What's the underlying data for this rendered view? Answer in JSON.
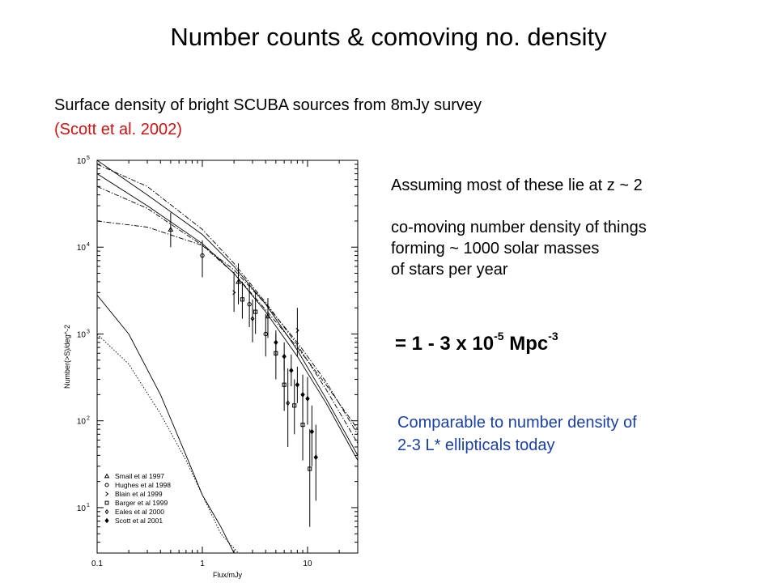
{
  "header": {
    "title": "Number counts & comoving no. density",
    "subtitle_line1": "Surface density of bright SCUBA sources from 8mJy survey",
    "subtitle_line2": "(Scott et al. 2002)"
  },
  "notes": {
    "line1": "Assuming most of these lie at z ~ 2",
    "line2": "co-moving number density of things",
    "line3": "forming ~ 1000 solar masses",
    "line4": "of stars per year"
  },
  "result": {
    "prefix": "= 1 - 3 x 10",
    "exp1": "-5",
    "unit": " Mpc",
    "exp2": "-3"
  },
  "comparison": {
    "line1": "Comparable to number density of",
    "line2": "2-3 L* ellipticals today"
  },
  "colors": {
    "title_text": "#000000",
    "citation": "#cc1111",
    "comparison": "#1a3fa8"
  },
  "chart_data": {
    "type": "scatter",
    "xlabel": "Flux/mJy",
    "ylabel": "Number(>S)/deg^-2",
    "x_scale": "log",
    "y_scale": "log",
    "xlim": [
      0.1,
      30
    ],
    "ylim": [
      3,
      100000
    ],
    "x_ticks": [
      0.1,
      1,
      10
    ],
    "x_tick_labels": [
      "0.1",
      "1",
      "10"
    ],
    "y_ticks": [
      10,
      100,
      1000,
      10000,
      100000
    ],
    "y_tick_label_bases": [
      "10",
      "10",
      "10",
      "10",
      "10"
    ],
    "y_tick_label_exps": [
      "1",
      "2",
      "3",
      "4",
      "5"
    ],
    "legend": {
      "position": "bottom-left",
      "entries": [
        "Smail et al 1997",
        "Hughes et al 1998",
        "Blain et al 1999",
        "Barger et al 1999",
        "Eales et al 2000",
        "Scott et al 2001"
      ],
      "symbols": [
        "triangle",
        "circle",
        "cross",
        "square",
        "diamond",
        "filled-diamond"
      ]
    },
    "series": [
      {
        "name": "Smail et al 1997",
        "symbol": "triangle",
        "points": [
          {
            "x": 0.5,
            "y": 16000,
            "lo": 10000,
            "hi": 25000
          },
          {
            "x": 2.2,
            "y": 4000,
            "lo": 2200,
            "hi": 6500
          },
          {
            "x": 4.2,
            "y": 1600,
            "lo": 900,
            "hi": 2600
          }
        ]
      },
      {
        "name": "Hughes et al 1998",
        "symbol": "circle",
        "points": [
          {
            "x": 1.0,
            "y": 8000,
            "lo": 4500,
            "hi": 12000
          },
          {
            "x": 2.8,
            "y": 2200,
            "lo": 1200,
            "hi": 3800
          },
          {
            "x": 4.0,
            "y": 1000,
            "lo": 550,
            "hi": 1700
          }
        ]
      },
      {
        "name": "Blain et al 1999",
        "symbol": "cross",
        "points": [
          {
            "x": 2.0,
            "y": 3000,
            "lo": 1800,
            "hi": 5200
          },
          {
            "x": 8.0,
            "y": 1100,
            "lo": 550,
            "hi": 2000
          }
        ]
      },
      {
        "name": "Barger et al 1999",
        "symbol": "square",
        "points": [
          {
            "x": 2.4,
            "y": 2500,
            "lo": 1500,
            "hi": 4000
          },
          {
            "x": 3.2,
            "y": 1800,
            "lo": 1000,
            "hi": 3000
          },
          {
            "x": 5.0,
            "y": 600,
            "lo": 300,
            "hi": 1000
          },
          {
            "x": 6.0,
            "y": 260,
            "lo": 130,
            "hi": 500
          },
          {
            "x": 7.5,
            "y": 150,
            "lo": 70,
            "hi": 300
          },
          {
            "x": 9.0,
            "y": 90,
            "lo": 35,
            "hi": 200
          },
          {
            "x": 10.5,
            "y": 28,
            "lo": 6,
            "hi": 80
          }
        ]
      },
      {
        "name": "Eales et al 2000",
        "symbol": "diamond",
        "points": [
          {
            "x": 3.0,
            "y": 1500,
            "lo": 800,
            "hi": 2500
          },
          {
            "x": 6.5,
            "y": 160,
            "lo": 50,
            "hi": 400
          }
        ]
      },
      {
        "name": "Scott et al 2001",
        "symbol": "filled-diamond",
        "points": [
          {
            "x": 5.0,
            "y": 800,
            "lo": 550,
            "hi": 1100
          },
          {
            "x": 6.0,
            "y": 550,
            "lo": 380,
            "hi": 800
          },
          {
            "x": 7.0,
            "y": 380,
            "lo": 250,
            "hi": 580
          },
          {
            "x": 8.0,
            "y": 260,
            "lo": 160,
            "hi": 420
          },
          {
            "x": 9.0,
            "y": 200,
            "lo": 110,
            "hi": 340
          },
          {
            "x": 10.0,
            "y": 180,
            "lo": 90,
            "hi": 320
          },
          {
            "x": 11.0,
            "y": 75,
            "lo": 30,
            "hi": 150
          },
          {
            "x": 12.0,
            "y": 38,
            "lo": 12,
            "hi": 90
          }
        ]
      }
    ],
    "model_curves": [
      {
        "style": "solid",
        "points": [
          [
            0.1,
            100000
          ],
          [
            0.3,
            40000
          ],
          [
            1,
            14000
          ],
          [
            2,
            6000
          ],
          [
            4,
            2200
          ],
          [
            8,
            650
          ],
          [
            15,
            180
          ],
          [
            30,
            40
          ]
        ]
      },
      {
        "style": "solid",
        "points": [
          [
            0.1,
            70000
          ],
          [
            0.3,
            30000
          ],
          [
            1,
            11000
          ],
          [
            2,
            5000
          ],
          [
            4,
            1800
          ],
          [
            8,
            550
          ],
          [
            15,
            160
          ],
          [
            30,
            35
          ]
        ]
      },
      {
        "style": "dash-dot",
        "points": [
          [
            0.1,
            90000
          ],
          [
            0.3,
            50000
          ],
          [
            1,
            16000
          ],
          [
            2,
            6500
          ],
          [
            4,
            2300
          ],
          [
            8,
            750
          ],
          [
            15,
            230
          ],
          [
            30,
            55
          ]
        ]
      },
      {
        "style": "dash-dot",
        "points": [
          [
            0.1,
            50000
          ],
          [
            0.3,
            28000
          ],
          [
            1,
            10500
          ],
          [
            2,
            5000
          ],
          [
            4,
            1900
          ],
          [
            8,
            700
          ],
          [
            15,
            260
          ],
          [
            30,
            80
          ]
        ]
      },
      {
        "style": "dash-dot",
        "points": [
          [
            0.1,
            20000
          ],
          [
            0.3,
            17000
          ],
          [
            1,
            10500
          ],
          [
            2,
            5500
          ],
          [
            4,
            2200
          ],
          [
            8,
            800
          ],
          [
            15,
            280
          ],
          [
            30,
            70
          ]
        ]
      },
      {
        "style": "solid",
        "points": [
          [
            0.1,
            2800
          ],
          [
            0.2,
            1000
          ],
          [
            0.4,
            200
          ],
          [
            0.7,
            40
          ],
          [
            1,
            14
          ],
          [
            1.5,
            6
          ],
          [
            2,
            3
          ]
        ]
      },
      {
        "style": "dotted",
        "points": [
          [
            0.1,
            1000
          ],
          [
            0.2,
            450
          ],
          [
            0.4,
            120
          ],
          [
            0.7,
            35
          ],
          [
            1,
            14
          ],
          [
            1.5,
            5
          ],
          [
            2.2,
            3
          ]
        ]
      }
    ]
  }
}
